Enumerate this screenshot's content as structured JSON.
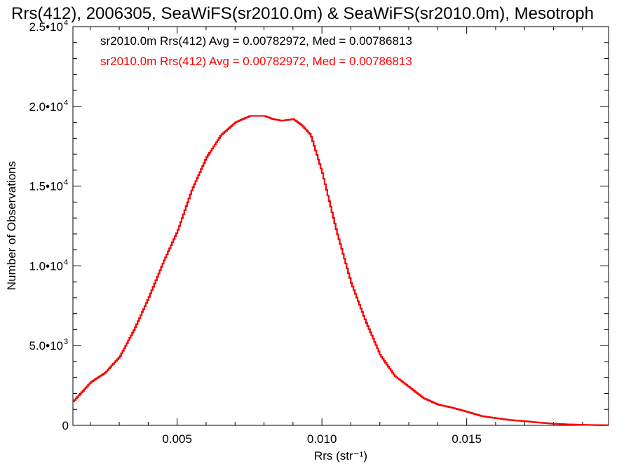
{
  "chart_data": {
    "type": "step",
    "title": "Rrs(412), 2006305, SeaWiFS(sr2010.0m) & SeaWiFS(sr2010.0m), Mesotroph",
    "xlabel": "Rrs (str⁻¹)",
    "ylabel": "Number of Observations",
    "xlim": [
      0.0014,
      0.0199
    ],
    "ylim": [
      0,
      25000
    ],
    "x_ticks": [
      {
        "value": 0.005,
        "label": "0.005"
      },
      {
        "value": 0.01,
        "label": "0.010"
      },
      {
        "value": 0.015,
        "label": "0.015"
      }
    ],
    "y_ticks": [
      {
        "value": 0,
        "mant": "0",
        "exp": ""
      },
      {
        "value": 5000,
        "mant": "5.0•10",
        "exp": "3"
      },
      {
        "value": 10000,
        "mant": "1.0•10",
        "exp": "4"
      },
      {
        "value": 15000,
        "mant": "1.5•10",
        "exp": "4"
      },
      {
        "value": 20000,
        "mant": "2.0•10",
        "exp": "4"
      },
      {
        "value": 25000,
        "mant": "2.5•10",
        "exp": "4"
      }
    ],
    "annotations": [
      {
        "text": "sr2010.0m Rrs(412) Avg = 0.00782972, Med = 0.00786813",
        "color": "#000000"
      },
      {
        "text": "sr2010.0m Rrs(412) Avg = 0.00782972, Med = 0.00786813",
        "color": "#ff0000"
      }
    ],
    "series": [
      {
        "color": "#000000",
        "x": [
          0.0014,
          0.002,
          0.0025,
          0.003,
          0.0035,
          0.004,
          0.0045,
          0.005,
          0.0055,
          0.006,
          0.0065,
          0.007,
          0.0075,
          0.008,
          0.0083,
          0.0086,
          0.009,
          0.0093,
          0.0096,
          0.01,
          0.0105,
          0.011,
          0.0115,
          0.012,
          0.0125,
          0.013,
          0.0135,
          0.014,
          0.0145,
          0.015,
          0.0155,
          0.016,
          0.0165,
          0.017,
          0.0175,
          0.018,
          0.0185,
          0.019,
          0.0199
        ],
        "y": [
          1500,
          2700,
          3300,
          4300,
          6000,
          8000,
          10200,
          12200,
          14800,
          16800,
          18200,
          19000,
          19400,
          19400,
          19200,
          19100,
          19200,
          18800,
          18200,
          15800,
          12100,
          8900,
          6500,
          4400,
          3100,
          2400,
          1700,
          1300,
          1100,
          850,
          580,
          450,
          330,
          260,
          170,
          100,
          60,
          30,
          5
        ]
      },
      {
        "color": "#ff0000",
        "x": [
          0.0014,
          0.002,
          0.0025,
          0.003,
          0.0035,
          0.004,
          0.0045,
          0.005,
          0.0055,
          0.006,
          0.0065,
          0.007,
          0.0075,
          0.008,
          0.0083,
          0.0086,
          0.009,
          0.0093,
          0.0096,
          0.01,
          0.0105,
          0.011,
          0.0115,
          0.012,
          0.0125,
          0.013,
          0.0135,
          0.014,
          0.0145,
          0.015,
          0.0155,
          0.016,
          0.0165,
          0.017,
          0.0175,
          0.018,
          0.0185,
          0.019,
          0.0199
        ],
        "y": [
          1500,
          2700,
          3300,
          4300,
          6000,
          8000,
          10200,
          12200,
          14800,
          16800,
          18200,
          19000,
          19400,
          19400,
          19200,
          19100,
          19200,
          18800,
          18200,
          15800,
          12100,
          8900,
          6500,
          4400,
          3100,
          2400,
          1700,
          1300,
          1100,
          850,
          580,
          450,
          330,
          260,
          170,
          100,
          60,
          30,
          5
        ]
      }
    ]
  }
}
